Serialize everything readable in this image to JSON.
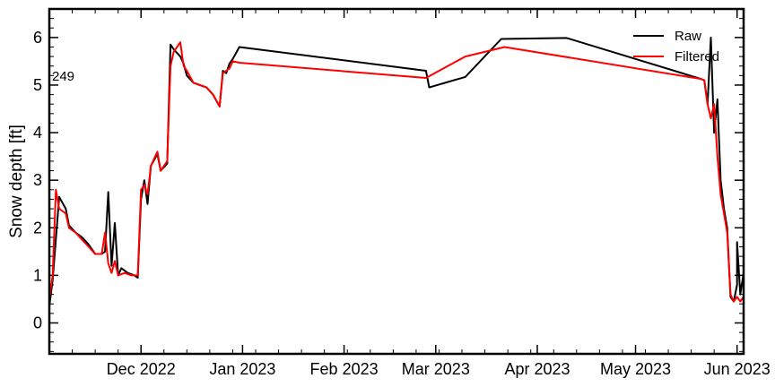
{
  "chart_data": {
    "type": "line",
    "title": "",
    "xlabel": "",
    "ylabel": "Snow depth [ft]",
    "annotation": "249",
    "xlim": [
      "2022-11-03",
      "2023-06-03"
    ],
    "ylim": [
      -0.65,
      6.6
    ],
    "grid": false,
    "legend_position": "top-right",
    "x_ticks": [
      {
        "date": "2022-12-01",
        "label": "Dec 2022"
      },
      {
        "date": "2023-01-01",
        "label": "Jan 2023"
      },
      {
        "date": "2023-02-01",
        "label": "Feb 2023"
      },
      {
        "date": "2023-03-01",
        "label": "Mar 2023"
      },
      {
        "date": "2023-04-01",
        "label": "Apr 2023"
      },
      {
        "date": "2023-05-01",
        "label": "May 2023"
      },
      {
        "date": "2023-06-01",
        "label": "Jun 2023"
      }
    ],
    "y_ticks": [
      0,
      1,
      2,
      3,
      4,
      5,
      6
    ],
    "series": [
      {
        "name": "Raw",
        "color": "#000000",
        "points": [
          [
            "2022-11-03",
            0.35
          ],
          [
            "2022-11-04",
            0.9
          ],
          [
            "2022-11-06",
            2.65
          ],
          [
            "2022-11-08",
            2.4
          ],
          [
            "2022-11-09",
            2.05
          ],
          [
            "2022-11-11",
            1.9
          ],
          [
            "2022-11-13",
            1.8
          ],
          [
            "2022-11-15",
            1.65
          ],
          [
            "2022-11-17",
            1.45
          ],
          [
            "2022-11-19",
            1.45
          ],
          [
            "2022-11-20",
            1.5
          ],
          [
            "2022-11-21",
            2.75
          ],
          [
            "2022-11-22",
            1.2
          ],
          [
            "2022-11-23",
            2.1
          ],
          [
            "2022-11-24",
            1.0
          ],
          [
            "2022-11-25",
            1.15
          ],
          [
            "2022-11-27",
            1.05
          ],
          [
            "2022-11-29",
            1.0
          ],
          [
            "2022-11-30",
            0.95
          ],
          [
            "2022-12-01",
            2.6
          ],
          [
            "2022-12-02",
            3.0
          ],
          [
            "2022-12-03",
            2.5
          ],
          [
            "2022-12-04",
            3.3
          ],
          [
            "2022-12-06",
            3.55
          ],
          [
            "2022-12-07",
            3.2
          ],
          [
            "2022-12-09",
            3.35
          ],
          [
            "2022-12-10",
            5.85
          ],
          [
            "2022-12-11",
            5.75
          ],
          [
            "2022-12-13",
            5.6
          ],
          [
            "2022-12-14",
            5.45
          ],
          [
            "2022-12-15",
            5.2
          ],
          [
            "2022-12-17",
            5.05
          ],
          [
            "2022-12-19",
            5.0
          ],
          [
            "2022-12-21",
            4.95
          ],
          [
            "2022-12-23",
            4.8
          ],
          [
            "2022-12-25",
            4.55
          ],
          [
            "2022-12-26",
            5.3
          ],
          [
            "2022-12-27",
            5.25
          ],
          [
            "2022-12-28",
            5.45
          ],
          [
            "2022-12-29",
            5.55
          ],
          [
            "2022-12-31",
            5.8
          ],
          [
            "2023-02-26",
            5.3
          ],
          [
            "2023-02-27",
            4.95
          ],
          [
            "2023-03-10",
            5.17
          ],
          [
            "2023-03-21",
            5.97
          ],
          [
            "2023-04-10",
            5.99
          ],
          [
            "2023-05-21",
            5.13
          ],
          [
            "2023-05-22",
            5.1
          ],
          [
            "2023-05-23",
            4.6
          ],
          [
            "2023-05-24",
            6.0
          ],
          [
            "2023-05-25",
            4.0
          ],
          [
            "2023-05-26",
            4.7
          ],
          [
            "2023-05-27",
            3.0
          ],
          [
            "2023-05-28",
            2.4
          ],
          [
            "2023-05-29",
            2.0
          ],
          [
            "2023-05-30",
            0.55
          ],
          [
            "2023-05-31",
            0.45
          ],
          [
            "2023-06-01",
            0.8
          ],
          [
            "2023-06-01",
            1.7
          ],
          [
            "2023-06-02",
            0.6
          ],
          [
            "2023-06-03",
            1.05
          ]
        ]
      },
      {
        "name": "Filtered",
        "color": "#ff0000",
        "points": [
          [
            "2022-11-03",
            0.5
          ],
          [
            "2022-11-04",
            1.0
          ],
          [
            "2022-11-05",
            2.8
          ],
          [
            "2022-11-06",
            2.4
          ],
          [
            "2022-11-08",
            2.3
          ],
          [
            "2022-11-09",
            2.0
          ],
          [
            "2022-11-11",
            1.9
          ],
          [
            "2022-11-13",
            1.75
          ],
          [
            "2022-11-15",
            1.6
          ],
          [
            "2022-11-17",
            1.45
          ],
          [
            "2022-11-19",
            1.45
          ],
          [
            "2022-11-20",
            1.9
          ],
          [
            "2022-11-21",
            1.25
          ],
          [
            "2022-11-22",
            1.05
          ],
          [
            "2022-11-23",
            1.3
          ],
          [
            "2022-11-24",
            1.0
          ],
          [
            "2022-11-26",
            1.05
          ],
          [
            "2022-11-28",
            1.0
          ],
          [
            "2022-11-30",
            1.0
          ],
          [
            "2022-12-01",
            2.8
          ],
          [
            "2022-12-02",
            2.9
          ],
          [
            "2022-12-03",
            2.7
          ],
          [
            "2022-12-04",
            3.3
          ],
          [
            "2022-12-06",
            3.6
          ],
          [
            "2022-12-07",
            3.2
          ],
          [
            "2022-12-09",
            3.4
          ],
          [
            "2022-12-10",
            5.4
          ],
          [
            "2022-12-11",
            5.7
          ],
          [
            "2022-12-13",
            5.9
          ],
          [
            "2022-12-14",
            5.4
          ],
          [
            "2022-12-15",
            5.3
          ],
          [
            "2022-12-17",
            5.05
          ],
          [
            "2022-12-19",
            5.0
          ],
          [
            "2022-12-21",
            4.95
          ],
          [
            "2022-12-23",
            4.8
          ],
          [
            "2022-12-25",
            4.55
          ],
          [
            "2022-12-26",
            5.25
          ],
          [
            "2022-12-28",
            5.35
          ],
          [
            "2022-12-29",
            5.5
          ],
          [
            "2022-12-31",
            5.47
          ],
          [
            "2023-02-26",
            5.15
          ],
          [
            "2023-03-10",
            5.6
          ],
          [
            "2023-03-22",
            5.8
          ],
          [
            "2023-05-21",
            5.13
          ],
          [
            "2023-05-22",
            5.1
          ],
          [
            "2023-05-23",
            4.6
          ],
          [
            "2023-05-24",
            4.3
          ],
          [
            "2023-05-25",
            4.6
          ],
          [
            "2023-05-26",
            3.5
          ],
          [
            "2023-05-27",
            2.7
          ],
          [
            "2023-05-28",
            2.3
          ],
          [
            "2023-05-29",
            1.9
          ],
          [
            "2023-05-30",
            0.6
          ],
          [
            "2023-05-31",
            0.45
          ],
          [
            "2023-06-01",
            0.55
          ],
          [
            "2023-06-02",
            0.45
          ],
          [
            "2023-06-03",
            0.55
          ]
        ]
      }
    ]
  }
}
